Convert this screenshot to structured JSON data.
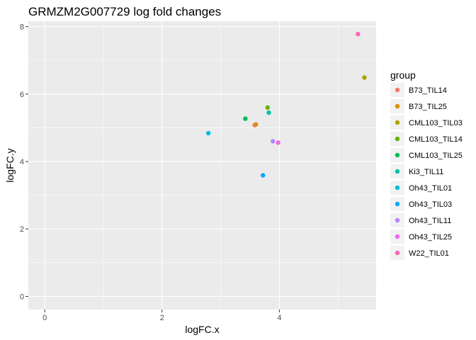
{
  "chart_data": {
    "type": "scatter",
    "title": "GRMZM2G007729 log fold changes",
    "xlabel": "logFC.x",
    "ylabel": "logFC.y",
    "xlim": [
      -0.28,
      5.65
    ],
    "ylim": [
      -0.39,
      8.16
    ],
    "x_ticks": [
      0,
      2,
      4
    ],
    "y_ticks": [
      0,
      2,
      4,
      6,
      8
    ],
    "grid": true,
    "legend": {
      "title": "group",
      "placement": "right",
      "entries": [
        {
          "name": "B73_TIL14",
          "color": "#F8766D"
        },
        {
          "name": "B73_TIL25",
          "color": "#DB8E00"
        },
        {
          "name": "CML103_TIL03",
          "color": "#AEA200"
        },
        {
          "name": "CML103_TIL14",
          "color": "#64B200"
        },
        {
          "name": "CML103_TIL25",
          "color": "#00BD5C"
        },
        {
          "name": "Ki3_TIL11",
          "color": "#00C1A7"
        },
        {
          "name": "Oh43_TIL01",
          "color": "#00BADE"
        },
        {
          "name": "Oh43_TIL03",
          "color": "#00A6FF"
        },
        {
          "name": "Oh43_TIL11",
          "color": "#B385FF"
        },
        {
          "name": "Oh43_TIL25",
          "color": "#EF67EB"
        },
        {
          "name": "W22_TIL01",
          "color": "#FF63B6"
        }
      ]
    },
    "points": [
      {
        "group": "B73_TIL14",
        "x": 3.58,
        "y": 5.08
      },
      {
        "group": "B73_TIL25",
        "x": 3.6,
        "y": 5.1
      },
      {
        "group": "CML103_TIL03",
        "x": 5.45,
        "y": 6.49
      },
      {
        "group": "CML103_TIL14",
        "x": 3.8,
        "y": 5.6
      },
      {
        "group": "CML103_TIL25",
        "x": 3.42,
        "y": 5.27
      },
      {
        "group": "Ki3_TIL11",
        "x": 3.82,
        "y": 5.45
      },
      {
        "group": "Oh43_TIL01",
        "x": 2.79,
        "y": 4.84
      },
      {
        "group": "Oh43_TIL03",
        "x": 3.72,
        "y": 3.59
      },
      {
        "group": "Oh43_TIL11",
        "x": 3.89,
        "y": 4.6
      },
      {
        "group": "Oh43_TIL25",
        "x": 3.98,
        "y": 4.56
      },
      {
        "group": "W22_TIL01",
        "x": 5.34,
        "y": 7.78
      }
    ]
  }
}
